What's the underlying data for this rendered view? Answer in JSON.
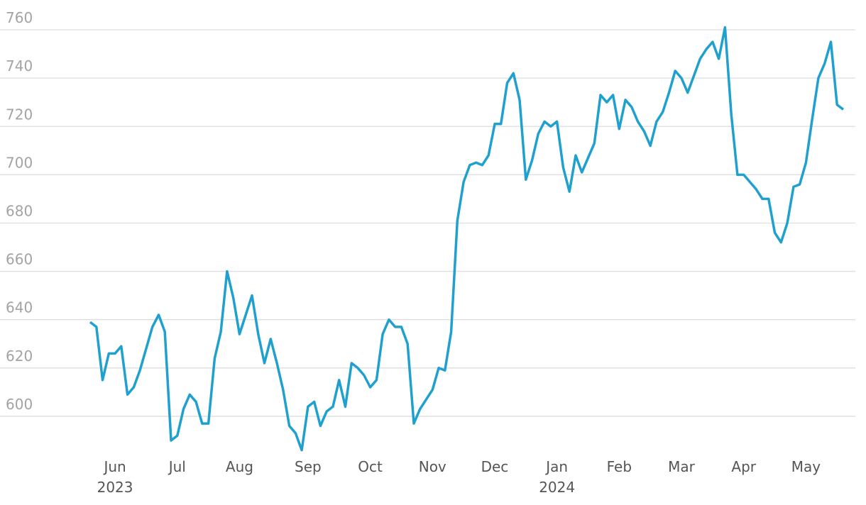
{
  "chart_data": {
    "type": "line",
    "categories": [
      null,
      null,
      null,
      null,
      "Jun 2023",
      null,
      null,
      null,
      null,
      null,
      null,
      null,
      null,
      null,
      "Jul",
      null,
      null,
      null,
      null,
      null,
      null,
      null,
      null,
      null,
      "Aug",
      null,
      null,
      null,
      null,
      null,
      null,
      null,
      null,
      null,
      null,
      "Sep",
      null,
      null,
      null,
      null,
      null,
      null,
      null,
      null,
      null,
      "Oct",
      null,
      null,
      null,
      null,
      null,
      null,
      null,
      null,
      null,
      "Nov",
      null,
      null,
      null,
      null,
      null,
      null,
      null,
      null,
      null,
      "Dec",
      null,
      null,
      null,
      null,
      null,
      null,
      null,
      null,
      null,
      "Jan 2024",
      null,
      null,
      null,
      null,
      null,
      null,
      null,
      null,
      null,
      "Feb",
      null,
      null,
      null,
      null,
      null,
      null,
      null,
      null,
      null,
      "Mar",
      null,
      null,
      null,
      null,
      null,
      null,
      null,
      null,
      null,
      "Apr",
      null,
      null,
      null,
      null,
      null,
      null,
      null,
      null,
      null,
      "May",
      null,
      null,
      null,
      null,
      null,
      null
    ],
    "series": [
      {
        "color": "#1fa0ce",
        "values": [
          639,
          637,
          615,
          626,
          626,
          629,
          609,
          612,
          619,
          628,
          637,
          642,
          635,
          590,
          592,
          603,
          609,
          606,
          597,
          597,
          624,
          635,
          660,
          649,
          634,
          642,
          650,
          634,
          622,
          632,
          622,
          611,
          596,
          593,
          586,
          604,
          606,
          596,
          602,
          604,
          615,
          604,
          622,
          620,
          617,
          612,
          615,
          634,
          640,
          637,
          637,
          630,
          597,
          603,
          607,
          611,
          620,
          619,
          635,
          681,
          697,
          704,
          705,
          704,
          708,
          721,
          721,
          738,
          742,
          731,
          698,
          706,
          717,
          722,
          720,
          722,
          703,
          693,
          708,
          701,
          707,
          713,
          733,
          730,
          733,
          719,
          731,
          728,
          722,
          718,
          712,
          722,
          726,
          734,
          743,
          740,
          734,
          741,
          748,
          752,
          755,
          748,
          761,
          725,
          700,
          700,
          697,
          694,
          690,
          690,
          676,
          672,
          680,
          695,
          696,
          705,
          723,
          740,
          746,
          755,
          729,
          727
        ]
      }
    ],
    "ylim": [
      585,
      765
    ],
    "yticks": [
      600,
      620,
      640,
      660,
      680,
      700,
      720,
      740,
      760
    ],
    "grid": true
  }
}
